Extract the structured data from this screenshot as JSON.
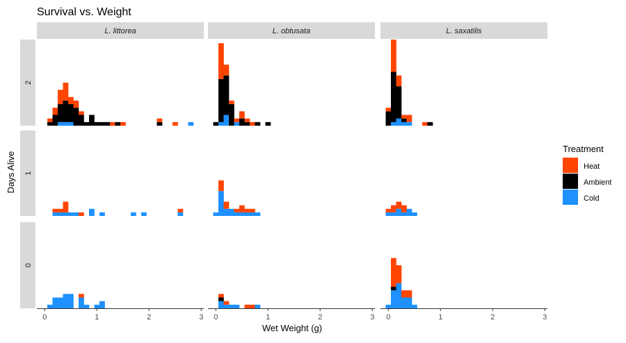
{
  "chart_data": {
    "type": "bar",
    "subtype": "faceted-stacked-histogram",
    "title": "Survival vs. Weight",
    "xlabel": "Wet Weight (g)",
    "ylabel": "Days Alive",
    "xlim": [
      -0.15,
      3.05
    ],
    "ylim": [
      0,
      24
    ],
    "x_ticks": [
      0,
      1,
      2,
      3
    ],
    "bin_width": 0.1,
    "legend": {
      "title": "Treatment",
      "position": "right",
      "entries": [
        {
          "name": "Heat",
          "color": "#FF4500"
        },
        {
          "name": "Ambient",
          "color": "#000000"
        },
        {
          "name": "Cold",
          "color": "#1E90FF"
        }
      ]
    },
    "stack_order": [
      "Cold",
      "Ambient",
      "Heat"
    ],
    "col_facets": [
      "L. littorea",
      "L. obtusata",
      "L. saxatilis"
    ],
    "row_facets": [
      "2",
      "1",
      "0"
    ],
    "panels": [
      {
        "col": 0,
        "row": 0,
        "bins": [
          {
            "x": 0.1,
            "Cold": 0,
            "Ambient": 1,
            "Heat": 1
          },
          {
            "x": 0.2,
            "Cold": 0,
            "Ambient": 3,
            "Heat": 2
          },
          {
            "x": 0.3,
            "Cold": 1,
            "Ambient": 5,
            "Heat": 4
          },
          {
            "x": 0.4,
            "Cold": 1,
            "Ambient": 6,
            "Heat": 5
          },
          {
            "x": 0.5,
            "Cold": 1,
            "Ambient": 5,
            "Heat": 2
          },
          {
            "x": 0.6,
            "Cold": 0,
            "Ambient": 5,
            "Heat": 2
          },
          {
            "x": 0.7,
            "Cold": 0,
            "Ambient": 3,
            "Heat": 1
          },
          {
            "x": 0.8,
            "Cold": 0,
            "Ambient": 1,
            "Heat": 0
          },
          {
            "x": 0.9,
            "Cold": 0,
            "Ambient": 3,
            "Heat": 0
          },
          {
            "x": 1.0,
            "Cold": 0,
            "Ambient": 1,
            "Heat": 0
          },
          {
            "x": 1.1,
            "Cold": 0,
            "Ambient": 1,
            "Heat": 0
          },
          {
            "x": 1.2,
            "Cold": 0,
            "Ambient": 1,
            "Heat": 0
          },
          {
            "x": 1.3,
            "Cold": 0,
            "Ambient": 0,
            "Heat": 1
          },
          {
            "x": 1.4,
            "Cold": 0,
            "Ambient": 1,
            "Heat": 0
          },
          {
            "x": 1.5,
            "Cold": 0,
            "Ambient": 0,
            "Heat": 1
          },
          {
            "x": 2.2,
            "Cold": 0,
            "Ambient": 1,
            "Heat": 1
          },
          {
            "x": 2.5,
            "Cold": 0,
            "Ambient": 0,
            "Heat": 1
          },
          {
            "x": 2.8,
            "Cold": 1,
            "Ambient": 0,
            "Heat": 0
          }
        ]
      },
      {
        "col": 1,
        "row": 0,
        "bins": [
          {
            "x": 0.0,
            "Cold": 0,
            "Ambient": 1,
            "Heat": 0
          },
          {
            "x": 0.1,
            "Cold": 1,
            "Ambient": 12,
            "Heat": 10
          },
          {
            "x": 0.2,
            "Cold": 3,
            "Ambient": 11,
            "Heat": 3
          },
          {
            "x": 0.3,
            "Cold": 0,
            "Ambient": 6,
            "Heat": 1
          },
          {
            "x": 0.4,
            "Cold": 1,
            "Ambient": 0,
            "Heat": 1
          },
          {
            "x": 0.5,
            "Cold": 0,
            "Ambient": 2,
            "Heat": 2
          },
          {
            "x": 0.6,
            "Cold": 0,
            "Ambient": 1,
            "Heat": 1
          },
          {
            "x": 0.7,
            "Cold": 0,
            "Ambient": 0,
            "Heat": 1
          },
          {
            "x": 0.8,
            "Cold": 0,
            "Ambient": 1,
            "Heat": 0
          },
          {
            "x": 1.0,
            "Cold": 0,
            "Ambient": 1,
            "Heat": 0
          }
        ]
      },
      {
        "col": 2,
        "row": 0,
        "bins": [
          {
            "x": 0.0,
            "Cold": 0,
            "Ambient": 4,
            "Heat": 1
          },
          {
            "x": 0.1,
            "Cold": 1,
            "Ambient": 14,
            "Heat": 9
          },
          {
            "x": 0.2,
            "Cold": 2,
            "Ambient": 9,
            "Heat": 3
          },
          {
            "x": 0.3,
            "Cold": 1,
            "Ambient": 1,
            "Heat": 1
          },
          {
            "x": 0.4,
            "Cold": 1,
            "Ambient": 0,
            "Heat": 2
          },
          {
            "x": 0.7,
            "Cold": 0,
            "Ambient": 0,
            "Heat": 1
          },
          {
            "x": 0.8,
            "Cold": 0,
            "Ambient": 1,
            "Heat": 0
          }
        ]
      },
      {
        "col": 0,
        "row": 1,
        "bins": [
          {
            "x": 0.2,
            "Cold": 1,
            "Ambient": 0,
            "Heat": 1
          },
          {
            "x": 0.3,
            "Cold": 1,
            "Ambient": 0,
            "Heat": 1
          },
          {
            "x": 0.4,
            "Cold": 1,
            "Ambient": 0,
            "Heat": 3
          },
          {
            "x": 0.5,
            "Cold": 1,
            "Ambient": 0,
            "Heat": 0
          },
          {
            "x": 0.6,
            "Cold": 1,
            "Ambient": 0,
            "Heat": 0
          },
          {
            "x": 0.7,
            "Cold": 0,
            "Ambient": 0,
            "Heat": 1
          },
          {
            "x": 0.9,
            "Cold": 2,
            "Ambient": 0,
            "Heat": 0
          },
          {
            "x": 1.1,
            "Cold": 1,
            "Ambient": 0,
            "Heat": 0
          },
          {
            "x": 1.7,
            "Cold": 1,
            "Ambient": 0,
            "Heat": 0
          },
          {
            "x": 1.9,
            "Cold": 1,
            "Ambient": 0,
            "Heat": 0
          },
          {
            "x": 2.6,
            "Cold": 1,
            "Ambient": 0,
            "Heat": 1
          }
        ]
      },
      {
        "col": 1,
        "row": 1,
        "bins": [
          {
            "x": 0.0,
            "Cold": 1,
            "Ambient": 0,
            "Heat": 0
          },
          {
            "x": 0.1,
            "Cold": 7,
            "Ambient": 0,
            "Heat": 3
          },
          {
            "x": 0.2,
            "Cold": 2,
            "Ambient": 0,
            "Heat": 2
          },
          {
            "x": 0.3,
            "Cold": 2,
            "Ambient": 0,
            "Heat": 0
          },
          {
            "x": 0.4,
            "Cold": 1,
            "Ambient": 0,
            "Heat": 1
          },
          {
            "x": 0.5,
            "Cold": 1,
            "Ambient": 0,
            "Heat": 2
          },
          {
            "x": 0.6,
            "Cold": 1,
            "Ambient": 0,
            "Heat": 1
          },
          {
            "x": 0.7,
            "Cold": 1,
            "Ambient": 0,
            "Heat": 1
          },
          {
            "x": 0.8,
            "Cold": 1,
            "Ambient": 0,
            "Heat": 0
          }
        ]
      },
      {
        "col": 2,
        "row": 1,
        "bins": [
          {
            "x": 0.0,
            "Cold": 1,
            "Ambient": 0,
            "Heat": 1
          },
          {
            "x": 0.1,
            "Cold": 1,
            "Ambient": 0,
            "Heat": 2
          },
          {
            "x": 0.2,
            "Cold": 2,
            "Ambient": 0,
            "Heat": 2
          },
          {
            "x": 0.3,
            "Cold": 1,
            "Ambient": 0,
            "Heat": 2
          },
          {
            "x": 0.4,
            "Cold": 2,
            "Ambient": 0,
            "Heat": 0
          },
          {
            "x": 0.5,
            "Cold": 1,
            "Ambient": 0,
            "Heat": 0
          }
        ]
      },
      {
        "col": 0,
        "row": 2,
        "bins": [
          {
            "x": 0.1,
            "Cold": 1,
            "Ambient": 0,
            "Heat": 0
          },
          {
            "x": 0.2,
            "Cold": 3,
            "Ambient": 0,
            "Heat": 0
          },
          {
            "x": 0.3,
            "Cold": 3,
            "Ambient": 0,
            "Heat": 0
          },
          {
            "x": 0.4,
            "Cold": 4,
            "Ambient": 0,
            "Heat": 0
          },
          {
            "x": 0.5,
            "Cold": 4,
            "Ambient": 0,
            "Heat": 0
          },
          {
            "x": 0.7,
            "Cold": 3,
            "Ambient": 0,
            "Heat": 1
          },
          {
            "x": 0.8,
            "Cold": 1,
            "Ambient": 0,
            "Heat": 0
          },
          {
            "x": 1.0,
            "Cold": 1,
            "Ambient": 0,
            "Heat": 0
          },
          {
            "x": 1.1,
            "Cold": 2,
            "Ambient": 0,
            "Heat": 0
          }
        ]
      },
      {
        "col": 1,
        "row": 2,
        "bins": [
          {
            "x": 0.1,
            "Cold": 2,
            "Ambient": 1,
            "Heat": 1
          },
          {
            "x": 0.2,
            "Cold": 1,
            "Ambient": 0,
            "Heat": 1
          },
          {
            "x": 0.3,
            "Cold": 1,
            "Ambient": 0,
            "Heat": 0
          },
          {
            "x": 0.4,
            "Cold": 1,
            "Ambient": 0,
            "Heat": 0
          },
          {
            "x": 0.6,
            "Cold": 0,
            "Ambient": 0,
            "Heat": 1
          },
          {
            "x": 0.7,
            "Cold": 0,
            "Ambient": 0,
            "Heat": 1
          },
          {
            "x": 0.8,
            "Cold": 1,
            "Ambient": 0,
            "Heat": 0
          }
        ]
      },
      {
        "col": 2,
        "row": 2,
        "bins": [
          {
            "x": 0.0,
            "Cold": 1,
            "Ambient": 0,
            "Heat": 0
          },
          {
            "x": 0.1,
            "Cold": 5,
            "Ambient": 1,
            "Heat": 8
          },
          {
            "x": 0.2,
            "Cold": 7,
            "Ambient": 0,
            "Heat": 5
          },
          {
            "x": 0.3,
            "Cold": 3,
            "Ambient": 0,
            "Heat": 2
          },
          {
            "x": 0.4,
            "Cold": 3,
            "Ambient": 0,
            "Heat": 2
          },
          {
            "x": 0.5,
            "Cold": 1,
            "Ambient": 0,
            "Heat": 0
          }
        ]
      }
    ]
  }
}
